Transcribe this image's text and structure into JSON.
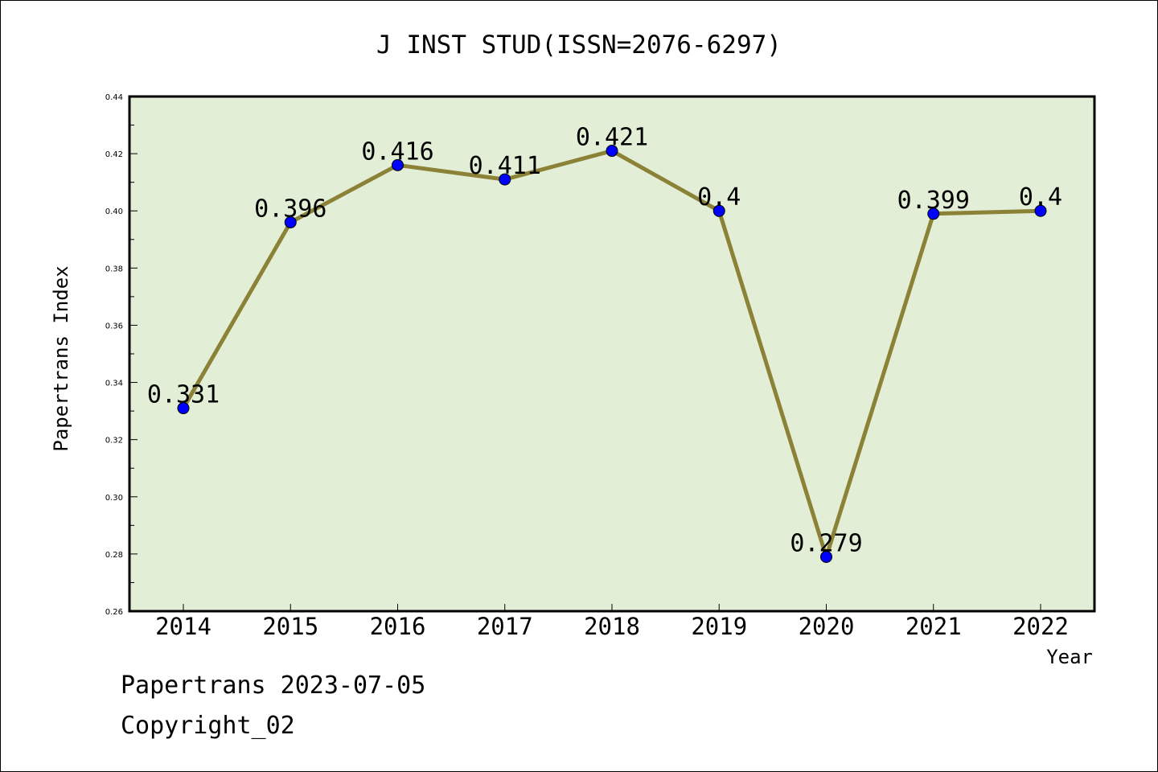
{
  "chart_data": {
    "type": "line",
    "title": "J INST STUD(ISSN=2076-6297)",
    "xlabel": "Year",
    "ylabel": "Papertrans Index",
    "categories": [
      "2014",
      "2015",
      "2016",
      "2017",
      "2018",
      "2019",
      "2020",
      "2021",
      "2022"
    ],
    "series": [
      {
        "values": [
          0.331,
          0.396,
          0.416,
          0.411,
          0.421,
          0.4,
          0.279,
          0.399,
          0.4
        ],
        "labels": [
          "0.331",
          "0.396",
          "0.416",
          "0.411",
          "0.421",
          "0.4",
          "0.279",
          "0.399",
          "0.4"
        ]
      }
    ],
    "ylim": [
      0.26,
      0.44
    ],
    "yticks": [
      "0.26",
      "0.28",
      "0.30",
      "0.32",
      "0.34",
      "0.36",
      "0.38",
      "0.40",
      "0.42",
      "0.44"
    ],
    "grid": false,
    "colors": {
      "plot_background": "#e2efd6",
      "line": "#8b8238",
      "marker": "#0000ff"
    }
  },
  "footer": {
    "line1": "Papertrans 2023-07-05",
    "line2": "Copyright_02"
  }
}
